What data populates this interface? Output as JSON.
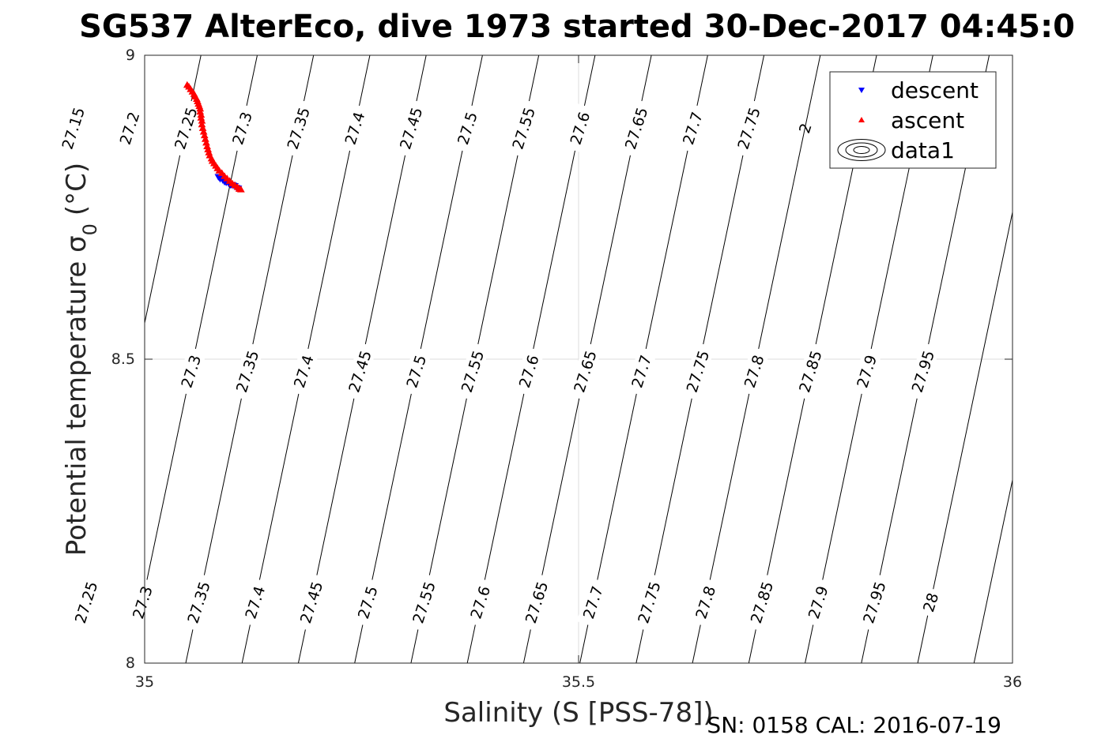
{
  "chart_data": {
    "type": "scatter",
    "title": "SG537 AlterEco, dive 1973 started 30-Dec-2017 04:45:0",
    "xlabel": "Salinity (S [PSS-78])",
    "ylabel": "Potential temperature σ",
    "ylabel_sub": "0",
    "ylabel_unit": "(°C)",
    "footer": "SN: 0158  CAL: 2016-07-19",
    "xlim": [
      35,
      36
    ],
    "ylim": [
      8,
      9
    ],
    "xticks": [
      "35",
      "35.5",
      "36"
    ],
    "yticks": [
      "8",
      "8.5",
      "9"
    ],
    "grid": true,
    "legend": {
      "placement": "top-right",
      "entries": [
        {
          "name": "descent",
          "color": "#0000ff",
          "marker": "triangle-down"
        },
        {
          "name": "ascent",
          "color": "#ff0000",
          "marker": "triangle-up"
        },
        {
          "name": "data1",
          "color": "#000000",
          "marker": "contour"
        }
      ]
    },
    "isopycnals": {
      "values": [
        27.15,
        27.2,
        27.25,
        27.3,
        27.35,
        27.4,
        27.45,
        27.5,
        27.55,
        27.6,
        27.65,
        27.7,
        27.75,
        27.8,
        27.85,
        27.9,
        27.95,
        28
      ],
      "upper_labels": [
        "27.15",
        "27.2",
        "27.25",
        "27.3",
        "27.35",
        "27.4",
        "27.45",
        "27.5",
        "27.55",
        "27.6",
        "27.65",
        "27.7",
        "27.75"
      ],
      "middle_labels": [
        "27.3",
        "27.35",
        "27.4",
        "27.45",
        "27.5",
        "27.55",
        "27.6",
        "27.65",
        "27.7",
        "27.75",
        "27.8",
        "27.85",
        "27.9",
        "27.95"
      ],
      "lower_labels": [
        "27.25",
        "27.3",
        "27.35",
        "27.4",
        "27.45",
        "27.5",
        "27.55",
        "27.6",
        "27.65",
        "27.7",
        "27.75",
        "27.8",
        "27.85",
        "27.9",
        "27.95",
        "28"
      ],
      "hidden_labels": [
        "2",
        "2",
        "2"
      ]
    },
    "series": [
      {
        "name": "descent",
        "color": "#0000ff",
        "points": [
          [
            35.085,
            8.8
          ],
          [
            35.087,
            8.797
          ],
          [
            35.09,
            8.795
          ],
          [
            35.092,
            8.792
          ],
          [
            35.094,
            8.791
          ],
          [
            35.097,
            8.789
          ],
          [
            35.099,
            8.787
          ],
          [
            35.1,
            8.787
          ],
          [
            35.102,
            8.786
          ],
          [
            35.104,
            8.785
          ],
          [
            35.106,
            8.782
          ],
          [
            35.108,
            8.781
          ]
        ]
      },
      {
        "name": "ascent",
        "color": "#ff0000",
        "points": [
          [
            35.049,
            8.951
          ],
          [
            35.051,
            8.948
          ],
          [
            35.053,
            8.944
          ],
          [
            35.055,
            8.94
          ],
          [
            35.057,
            8.936
          ],
          [
            35.058,
            8.932
          ],
          [
            35.06,
            8.928
          ],
          [
            35.061,
            8.924
          ],
          [
            35.062,
            8.92
          ],
          [
            35.063,
            8.916
          ],
          [
            35.064,
            8.912
          ],
          [
            35.064,
            8.907
          ],
          [
            35.065,
            8.902
          ],
          [
            35.065,
            8.897
          ],
          [
            35.066,
            8.892
          ],
          [
            35.066,
            8.886
          ],
          [
            35.067,
            8.88
          ],
          [
            35.068,
            8.874
          ],
          [
            35.069,
            8.868
          ],
          [
            35.07,
            8.862
          ],
          [
            35.071,
            8.856
          ],
          [
            35.072,
            8.85
          ],
          [
            35.073,
            8.845
          ],
          [
            35.074,
            8.84
          ],
          [
            35.075,
            8.835
          ],
          [
            35.077,
            8.83
          ],
          [
            35.078,
            8.826
          ],
          [
            35.08,
            8.822
          ],
          [
            35.082,
            8.818
          ],
          [
            35.084,
            8.814
          ],
          [
            35.086,
            8.81
          ],
          [
            35.089,
            8.806
          ],
          [
            35.092,
            8.801
          ],
          [
            35.095,
            8.797
          ],
          [
            35.098,
            8.793
          ],
          [
            35.101,
            8.789
          ],
          [
            35.104,
            8.786
          ],
          [
            35.107,
            8.783
          ],
          [
            35.109,
            8.78
          ],
          [
            35.111,
            8.779
          ]
        ]
      }
    ]
  }
}
